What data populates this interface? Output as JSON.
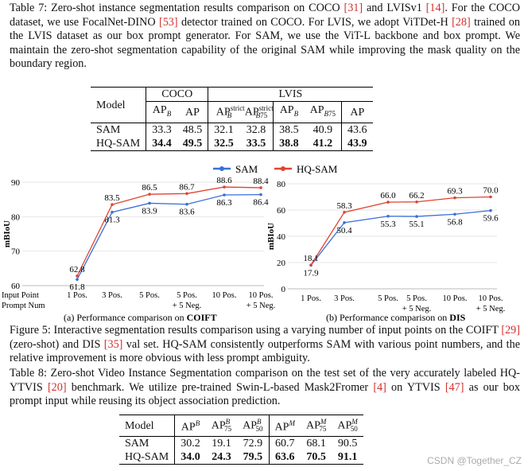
{
  "table7": {
    "caption": [
      {
        "t": "Table 7: Zero-shot instance segmentation results comparison on COCO "
      },
      {
        "t": "[31]",
        "c": 1
      },
      {
        "t": " and LVISv1 "
      },
      {
        "t": "[14]",
        "c": 1
      },
      {
        "t": ". For the COCO dataset, we use FocalNet-DINO "
      },
      {
        "t": "[53]",
        "c": 1
      },
      {
        "t": " detector trained on COCO. For LVIS, we adopt ViTDet-H "
      },
      {
        "t": "[28]",
        "c": 1
      },
      {
        "t": " trained on the LVIS dataset as our box prompt generator. For SAM, we use the ViT-L backbone and box prompt. We maintain the zero-shot segmentation capability of the original SAM while improving the mask quality on the boundary region."
      }
    ],
    "model_header": "Model",
    "group_coco": "COCO",
    "group_lvis": "LVIS",
    "columns": [
      "AP_B",
      "AP",
      "AP_B^strict",
      "AP_B75^strict",
      "AP_B",
      "AP_B75",
      "AP"
    ],
    "rows": [
      {
        "model": "SAM",
        "values": [
          "33.3",
          "48.5",
          "32.1",
          "32.8",
          "38.5",
          "40.9",
          "43.6"
        ]
      },
      {
        "model": "HQ-SAM",
        "values": [
          "34.4",
          "49.5",
          "32.5",
          "33.5",
          "38.8",
          "41.2",
          "43.9"
        ],
        "bold": true
      }
    ]
  },
  "figure5": {
    "legend": [
      {
        "name": "SAM",
        "color": "#3a6fd8"
      },
      {
        "name": "HQ-SAM",
        "color": "#e0432f"
      }
    ],
    "caption": [
      {
        "t": "Figure 5: Interactive segmentation results comparison using a varying number of input points on the COIFT "
      },
      {
        "t": "[29]",
        "c": 1
      },
      {
        "t": " (zero-shot) and DIS "
      },
      {
        "t": "[35]",
        "c": 1
      },
      {
        "t": " val set. HQ-SAM consistently outperforms SAM with various point numbers, and the relative improvement is more obvious with less prompt ambiguity."
      }
    ]
  },
  "chart_data": [
    {
      "type": "line",
      "ylabel": "mBIoU",
      "ylim": [
        60,
        90
      ],
      "yticks": [
        60,
        70,
        80,
        90
      ],
      "grid": true,
      "x_axis_title": [
        "Input Point",
        "Prompt Num"
      ],
      "categories": [
        [
          "1 Pos."
        ],
        [
          "3 Pos."
        ],
        [
          "5 Pos."
        ],
        [
          "5 Pos.",
          "+ 5 Neg."
        ],
        [
          "10 Pos."
        ],
        [
          "10 Pos.",
          "+ 5 Neg."
        ]
      ],
      "series": [
        {
          "name": "SAM",
          "values": [
            61.8,
            81.3,
            83.9,
            83.6,
            86.3,
            86.4
          ]
        },
        {
          "name": "HQ-SAM",
          "values": [
            62.8,
            83.5,
            86.5,
            86.7,
            88.6,
            88.4
          ]
        }
      ],
      "caption_prefix": "(a) Performance comparison on ",
      "caption_bold": "COIFT"
    },
    {
      "type": "line",
      "ylabel": "mBIoU",
      "ylim": [
        0,
        80
      ],
      "yticks": [
        0,
        20,
        40,
        60,
        80
      ],
      "grid": true,
      "categories": [
        [
          "1 Pos."
        ],
        [
          "3 Pos."
        ],
        [
          "5 Pos."
        ],
        [
          "5 Pos.",
          "+ 5 Neg."
        ],
        [
          "10 Pos."
        ],
        [
          "10 Pos.",
          "+ 5 Neg."
        ]
      ],
      "series": [
        {
          "name": "SAM",
          "values": [
            17.9,
            50.4,
            55.3,
            55.1,
            56.8,
            59.6
          ]
        },
        {
          "name": "HQ-SAM",
          "values": [
            18.1,
            58.3,
            66.0,
            66.2,
            69.3,
            70.0
          ]
        }
      ],
      "caption_prefix": "(b) Performance comparison on ",
      "caption_bold": "DIS"
    }
  ],
  "table8": {
    "caption": [
      {
        "t": "Table 8: Zero-shot Video Instance Segmentation comparison on the test set of the very accurately labeled HQ-YTVIS "
      },
      {
        "t": "[20]",
        "c": 1
      },
      {
        "t": " benchmark. We utilize pre-trained Swin-L-based Mask2Fromer "
      },
      {
        "t": "[4]",
        "c": 1
      },
      {
        "t": " on YTVIS "
      },
      {
        "t": "[47]",
        "c": 1
      },
      {
        "t": " as our box prompt input while reusing its object association prediction."
      }
    ],
    "model_header": "Model",
    "columns": [
      "AP^B",
      "AP_75^B",
      "AP_50^B",
      "AP^M",
      "AP_75^M",
      "AP_50^M"
    ],
    "rows": [
      {
        "model": "SAM",
        "values": [
          "30.2",
          "19.1",
          "72.9",
          "60.7",
          "68.1",
          "90.5"
        ]
      },
      {
        "model": "HQ-SAM",
        "values": [
          "34.0",
          "24.3",
          "79.5",
          "63.6",
          "70.5",
          "91.1"
        ],
        "bold": true
      }
    ]
  },
  "watermark": "CSDN @Together_CZ"
}
